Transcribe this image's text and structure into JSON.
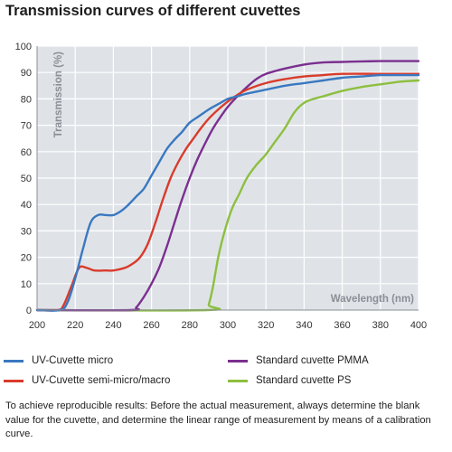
{
  "title": "Transmission curves of different cuvettes",
  "note": "To achieve reproducible results: Before the actual measurement, always determine the blank value for the cuvette, and determine the linear range of measurement by means of a calibration curve.",
  "chart_data": {
    "type": "line",
    "title": "Transmission curves of different cuvettes",
    "xlabel": "Wavelength (nm)",
    "ylabel": "Transmission (%)",
    "xlim": [
      200,
      400
    ],
    "ylim": [
      0,
      100
    ],
    "xticks": [
      200,
      220,
      240,
      260,
      280,
      300,
      320,
      340,
      360,
      380,
      400
    ],
    "yticks": [
      0,
      10,
      20,
      30,
      40,
      50,
      60,
      70,
      80,
      90,
      100
    ],
    "grid": true,
    "legend_position": "bottom",
    "series": [
      {
        "name": "UV-Cuvette micro",
        "color": "#3a78c0",
        "x": [
          200,
          212,
          216,
          220,
          224,
          228,
          232,
          236,
          240,
          244,
          248,
          252,
          256,
          260,
          264,
          268,
          272,
          276,
          280,
          285,
          290,
          295,
          300,
          305,
          310,
          320,
          330,
          340,
          350,
          360,
          370,
          380,
          390,
          400
        ],
        "y": [
          0,
          0,
          3,
          12,
          23,
          33,
          36,
          36,
          36,
          37.5,
          40,
          43,
          46,
          51,
          56,
          61,
          64.5,
          67.5,
          71,
          73.5,
          76,
          78,
          80,
          81,
          82,
          83.5,
          85,
          86,
          87,
          88,
          88.5,
          89,
          89,
          89
        ]
      },
      {
        "name": "UV-Cuvette semi-micro/macro",
        "color": "#d93b2b",
        "x": [
          200,
          211,
          214,
          218,
          222,
          226,
          230,
          236,
          240,
          246,
          250,
          254,
          258,
          262,
          266,
          270,
          274,
          278,
          282,
          286,
          290,
          295,
          300,
          305,
          310,
          320,
          330,
          340,
          350,
          360,
          380,
          400
        ],
        "y": [
          0,
          0,
          2,
          9,
          16,
          16,
          15,
          15,
          15,
          16,
          17.5,
          20,
          25,
          33,
          42,
          50,
          56,
          61,
          65,
          69,
          72.5,
          76,
          79,
          81.5,
          83.5,
          86,
          87.5,
          88.5,
          89,
          89.5,
          89.5,
          89.5
        ]
      },
      {
        "name": "Standard cuvette PMMA",
        "color": "#7b2f8f",
        "x": [
          200,
          249,
          252,
          256,
          260,
          264,
          268,
          272,
          276,
          280,
          284,
          288,
          292,
          296,
          300,
          305,
          310,
          315,
          320,
          330,
          340,
          350,
          360,
          370,
          380,
          390,
          400
        ],
        "y": [
          0,
          0,
          1,
          5,
          10,
          16,
          24,
          33,
          42,
          50,
          57,
          63,
          68.5,
          73,
          77,
          81,
          84.5,
          87.5,
          89.5,
          91.5,
          93,
          93.8,
          94,
          94.2,
          94.3,
          94.3,
          94.3
        ]
      },
      {
        "name": "Standard cuvette PS",
        "color": "#8dbf3f",
        "x": [
          200,
          289,
          290,
          292,
          295,
          298,
          302,
          306,
          310,
          315,
          320,
          325,
          330,
          335,
          340,
          345,
          350,
          360,
          370,
          380,
          390,
          400
        ],
        "y": [
          0,
          0,
          2,
          8,
          20,
          29,
          38,
          44,
          50,
          55,
          59,
          64,
          69,
          75,
          78.5,
          80,
          81,
          83,
          84.5,
          85.5,
          86.5,
          87
        ]
      }
    ]
  }
}
